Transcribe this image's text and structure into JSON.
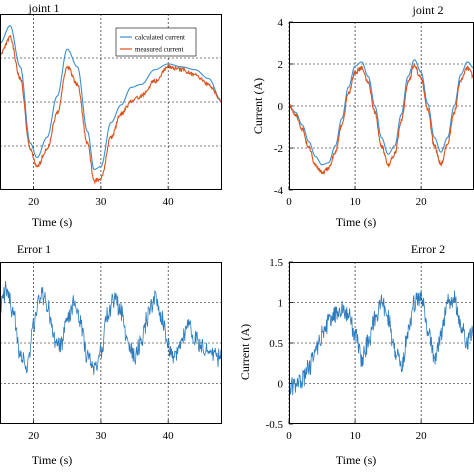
{
  "colors": {
    "calculated": "#3d8fd1",
    "measured": "#d9531e",
    "error": "#2c7bbd",
    "grid": "#000000",
    "axis": "#000000"
  },
  "chart_data": [
    {
      "type": "line",
      "title": "joint 1",
      "xlabel": "Time (s)",
      "ylabel": "",
      "xlim": [
        15,
        48
      ],
      "ylim": [
        -3,
        3
      ],
      "x_ticks": [
        20,
        30,
        40
      ],
      "y_ticks": [],
      "grid": true,
      "legend": {
        "position": "top-right",
        "entries": [
          "calculated current",
          "measured current"
        ]
      },
      "series": [
        {
          "name": "calculated current",
          "x": [
            15,
            16.5,
            18,
            19.5,
            20.5,
            22,
            23.5,
            25,
            26.5,
            28,
            29,
            30,
            31.5,
            33,
            34.5,
            36,
            38,
            40,
            42,
            44,
            46,
            48
          ],
          "y": [
            2.0,
            2.6,
            1.2,
            -1.4,
            -1.9,
            -1.2,
            0.2,
            1.8,
            1.2,
            -1.0,
            -2.3,
            -2.2,
            -0.7,
            -0.1,
            0.5,
            0.6,
            1.1,
            1.3,
            1.2,
            1.1,
            0.8,
            0.0
          ]
        },
        {
          "name": "measured current",
          "x": [
            15,
            16.5,
            18,
            19.5,
            20.5,
            22,
            23.5,
            25,
            26.5,
            28,
            29,
            30,
            31.5,
            33,
            34.5,
            36,
            38,
            40,
            42,
            44,
            46,
            48
          ],
          "y": [
            1.6,
            2.2,
            0.8,
            -1.6,
            -2.2,
            -1.6,
            -0.4,
            1.2,
            0.6,
            -1.4,
            -2.7,
            -2.6,
            -1.2,
            -0.4,
            0.0,
            0.2,
            0.7,
            1.2,
            1.1,
            0.9,
            0.6,
            0.0
          ]
        }
      ]
    },
    {
      "type": "line",
      "title": "joint 2",
      "xlabel": "Time (s)",
      "ylabel": "Current (A)",
      "xlim": [
        0,
        28
      ],
      "ylim": [
        -4,
        4
      ],
      "x_ticks": [
        0,
        10,
        20
      ],
      "y_ticks": [
        -4,
        -2,
        0,
        2,
        4
      ],
      "grid": true,
      "series": [
        {
          "name": "calculated current",
          "x": [
            0,
            1,
            2,
            3,
            4,
            5,
            6,
            7,
            8,
            9,
            10,
            11,
            12,
            13,
            14,
            15,
            16,
            17,
            18,
            19,
            20,
            21,
            22,
            23,
            24,
            25,
            26,
            27,
            28
          ],
          "y": [
            0,
            -0.3,
            -0.9,
            -1.7,
            -2.4,
            -2.8,
            -2.7,
            -1.9,
            -0.6,
            0.9,
            1.9,
            2.1,
            1.4,
            0.0,
            -1.5,
            -2.3,
            -1.9,
            -0.4,
            1.4,
            2.2,
            1.6,
            0.1,
            -1.5,
            -2.2,
            -1.5,
            0.0,
            1.5,
            2.1,
            1.8
          ]
        },
        {
          "name": "measured current",
          "x": [
            0,
            1,
            2,
            3,
            4,
            5,
            6,
            7,
            8,
            9,
            10,
            11,
            12,
            13,
            14,
            15,
            16,
            17,
            18,
            19,
            20,
            21,
            22,
            23,
            24,
            25,
            26,
            27,
            28
          ],
          "y": [
            0,
            -0.4,
            -1.1,
            -2.0,
            -2.8,
            -3.2,
            -3.0,
            -2.2,
            -0.9,
            0.6,
            1.6,
            1.8,
            1.1,
            -0.3,
            -1.9,
            -2.8,
            -2.3,
            -0.7,
            1.1,
            1.9,
            1.3,
            -0.2,
            -1.9,
            -2.8,
            -1.8,
            -0.3,
            1.2,
            1.8,
            1.4
          ]
        }
      ]
    },
    {
      "type": "line",
      "title": "Error 1",
      "xlabel": "Time (s)",
      "ylabel": "",
      "xlim": [
        15,
        48
      ],
      "ylim": [
        -0.6,
        1.2
      ],
      "x_ticks": [
        20,
        30,
        40
      ],
      "y_ticks": [],
      "grid": true,
      "series": [
        {
          "name": "",
          "x": [
            15,
            16,
            17,
            18,
            19,
            20,
            21,
            22,
            23,
            24,
            25,
            26,
            27,
            28,
            29,
            30,
            31,
            32,
            33,
            34,
            35,
            36,
            37,
            38,
            39,
            40,
            41,
            42,
            43,
            44,
            45,
            46,
            47,
            48
          ],
          "y": [
            0.7,
            0.9,
            0.6,
            0.2,
            0.0,
            0.5,
            0.85,
            0.75,
            0.35,
            0.25,
            0.55,
            0.75,
            0.5,
            0.15,
            0.0,
            0.2,
            0.6,
            0.8,
            0.65,
            0.3,
            0.15,
            0.3,
            0.6,
            0.8,
            0.6,
            0.25,
            0.15,
            0.35,
            0.5,
            0.35,
            0.25,
            0.2,
            0.15,
            0.12
          ]
        }
      ]
    },
    {
      "type": "line",
      "title": "Error 2",
      "xlabel": "Time (s)",
      "ylabel": "Current (A)",
      "xlim": [
        0,
        28
      ],
      "ylim": [
        -0.5,
        1.5
      ],
      "x_ticks": [
        0,
        10,
        20
      ],
      "y_ticks": [
        -0.5,
        0,
        0.5,
        1,
        1.5
      ],
      "grid": true,
      "series": [
        {
          "name": "",
          "x": [
            0,
            1,
            2,
            3,
            4,
            5,
            6,
            7,
            8,
            9,
            10,
            11,
            12,
            13,
            14,
            15,
            16,
            17,
            18,
            19,
            20,
            21,
            22,
            23,
            24,
            25,
            26,
            27,
            28
          ],
          "y": [
            -0.05,
            -0.03,
            0.05,
            0.2,
            0.4,
            0.6,
            0.75,
            0.85,
            0.9,
            0.85,
            0.6,
            0.3,
            0.5,
            0.8,
            1.0,
            0.8,
            0.4,
            0.2,
            0.6,
            1.0,
            1.05,
            0.7,
            0.3,
            0.6,
            1.0,
            1.05,
            0.7,
            0.5,
            0.7
          ]
        }
      ]
    }
  ]
}
